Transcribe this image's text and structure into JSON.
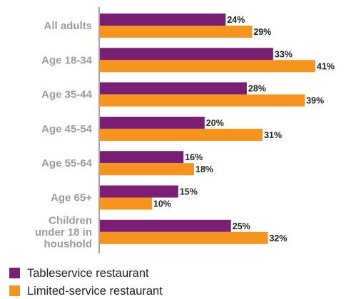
{
  "chart_data": {
    "type": "bar",
    "orientation": "horizontal",
    "categories": [
      [
        "All adults"
      ],
      [
        "Age 18-34"
      ],
      [
        "Age 35-44"
      ],
      [
        "Age 45-54"
      ],
      [
        "Age 55-64"
      ],
      [
        "Age 65+"
      ],
      [
        "Children",
        "under 18 in",
        "houshold"
      ]
    ],
    "series": [
      {
        "name": "Tableservice restaurant",
        "color": "#7a1f74",
        "values": [
          24,
          33,
          28,
          20,
          16,
          15,
          25
        ]
      },
      {
        "name": "Limited-service restaurant",
        "color": "#f7941d",
        "values": [
          29,
          41,
          39,
          31,
          18,
          10,
          32
        ]
      }
    ],
    "value_suffix": "%",
    "xlim": [
      0,
      41
    ],
    "grid": false,
    "legend_position": "bottom-left"
  }
}
